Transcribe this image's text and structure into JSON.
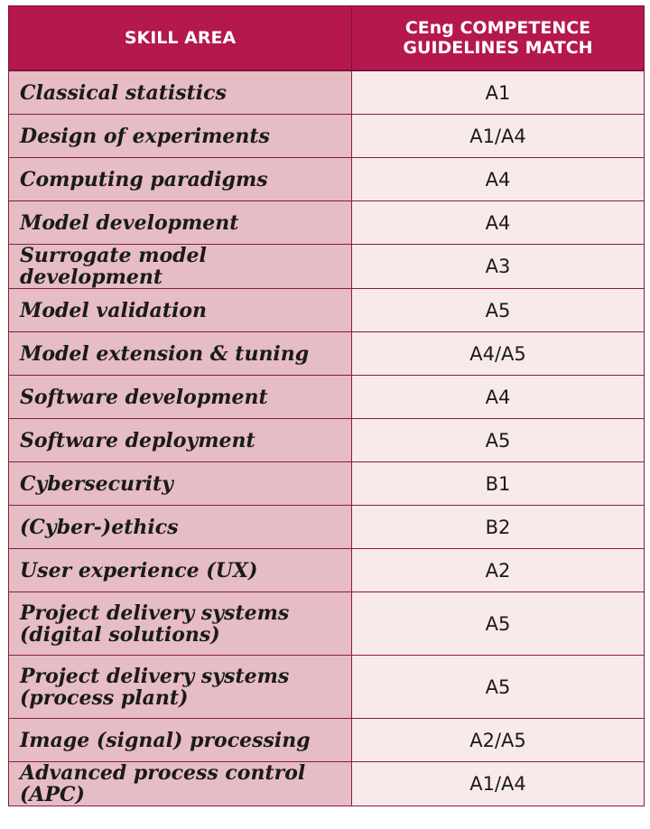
{
  "header": {
    "skill_area": "SKILL AREA",
    "guidelines": "CEng COMPETENCE GUIDELINES MATCH"
  },
  "rows": [
    {
      "skill": "Classical statistics",
      "match": "A1"
    },
    {
      "skill": "Design of experiments",
      "match": "A1/A4"
    },
    {
      "skill": "Computing paradigms",
      "match": "A4"
    },
    {
      "skill": "Model development",
      "match": "A4"
    },
    {
      "skill": "Surrogate model development",
      "match": "A3"
    },
    {
      "skill": "Model validation",
      "match": "A5"
    },
    {
      "skill": "Model extension & tuning",
      "match": "A4/A5"
    },
    {
      "skill": "Software development",
      "match": "A4"
    },
    {
      "skill": "Software deployment",
      "match": "A5"
    },
    {
      "skill": "Cybersecurity",
      "match": "B1"
    },
    {
      "skill": "(Cyber-)ethics",
      "match": "B2"
    },
    {
      "skill": "User experience (UX)",
      "match": "A2"
    },
    {
      "skill_line1": "Project delivery systems",
      "skill_line2": "(digital solutions)",
      "match": "A5"
    },
    {
      "skill_line1": "Project delivery systems",
      "skill_line2": "(process plant)",
      "match": "A5"
    },
    {
      "skill": "Image (signal) processing",
      "match": "A2/A5"
    },
    {
      "skill": "Advanced process control (APC)",
      "match": "A1/A4"
    }
  ]
}
